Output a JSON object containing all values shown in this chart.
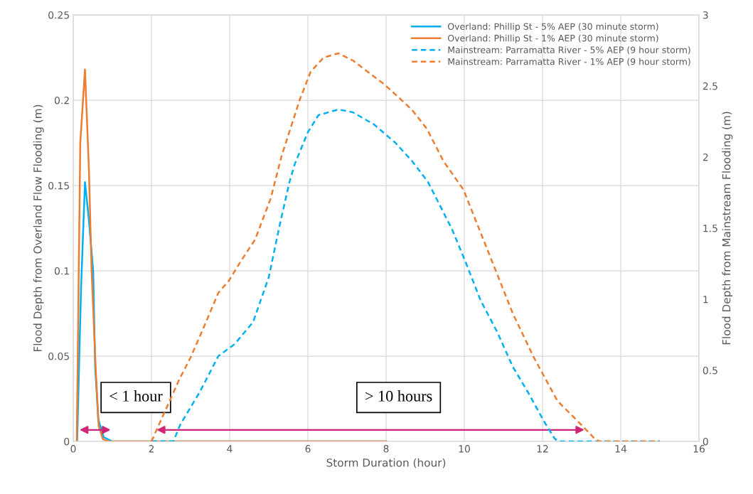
{
  "chart_data": {
    "type": "line",
    "xlabel": "Storm Duration (hour)",
    "ylabel": "Flood Depth from Overland Flow Flooding (m)",
    "y2label": "Flood Depth from Mainstream Flooding (m)",
    "xlim": [
      0,
      16
    ],
    "xticks": [
      0,
      2,
      4,
      6,
      8,
      10,
      12,
      14,
      16
    ],
    "ylim": [
      0,
      0.25
    ],
    "yticks": [
      0,
      0.05,
      0.1,
      0.15,
      0.2,
      0.25
    ],
    "y2lim": [
      0,
      3
    ],
    "y2ticks": [
      0,
      0.5,
      1,
      1.5,
      2,
      2.5,
      3
    ],
    "grid": true,
    "legend": "top right",
    "annotations": [
      "< 1 hour",
      "> 10 hours"
    ],
    "series": [
      {
        "name": "Overland: Phillip St - 5% AEP (30 minute storm)",
        "color": "#00b0f0",
        "line_style": "solid",
        "x": [
          0.1,
          0.2,
          0.3,
          0.4,
          0.51,
          0.56,
          0.64,
          0.78,
          1.0,
          8
        ],
        "values": [
          0,
          0.09,
          0.152,
          0.13,
          0.1,
          0.044,
          0.013,
          0.0025,
          0,
          0
        ]
      },
      {
        "name": "Overland: Phillip St - 1% AEP (30 minute storm)",
        "color": "#ed7d31",
        "line_style": "solid",
        "x": [
          0.09,
          0.18,
          0.3,
          0.4,
          0.47,
          0.58,
          0.65,
          0.76,
          0.9,
          8
        ],
        "values": [
          0,
          0.175,
          0.218,
          0.16,
          0.1,
          0.04,
          0.009,
          0.0013,
          0,
          0
        ]
      },
      {
        "name": "Mainstream: Parramatta River - 5% AEP (9 hour storm)",
        "color": "#00b0f0",
        "line_style": "dashed",
        "axis": "y2",
        "x": [
          2,
          2.56,
          2.74,
          3.22,
          3.71,
          4.13,
          4.6,
          5.0,
          5.27,
          5.53,
          5.67,
          6.0,
          6.27,
          6.78,
          7.15,
          7.69,
          8.24,
          8.67,
          9.07,
          9.69,
          10.02,
          10.42,
          10.84,
          11.24,
          11.64,
          12.04,
          12.31,
          12.4,
          15
        ],
        "values": [
          0,
          0,
          0.12,
          0.34,
          0.6,
          0.685,
          0.84,
          1.155,
          1.51,
          1.825,
          1.955,
          2.175,
          2.295,
          2.335,
          2.315,
          2.23,
          2.1,
          1.97,
          1.825,
          1.49,
          1.27,
          0.99,
          0.77,
          0.525,
          0.34,
          0.14,
          0.02,
          0,
          0
        ]
      },
      {
        "name": "Mainstream: Parramatta River - 1% AEP (9 hour storm)",
        "color": "#ed7d31",
        "line_style": "dashed",
        "axis": "y2",
        "x": [
          2,
          2.71,
          3.0,
          3.31,
          3.71,
          3.98,
          4.29,
          4.65,
          5.05,
          5.33,
          5.8,
          6.07,
          6.4,
          6.78,
          7.15,
          7.96,
          8.36,
          8.67,
          9.04,
          9.47,
          9.98,
          10.82,
          11.24,
          11.76,
          12.38,
          12.98,
          13.33,
          13.45,
          15
        ],
        "values": [
          0,
          0.435,
          0.59,
          0.785,
          1.045,
          1.13,
          1.27,
          1.42,
          1.71,
          2.01,
          2.41,
          2.6,
          2.7,
          2.73,
          2.68,
          2.51,
          2.41,
          2.33,
          2.2,
          1.97,
          1.77,
          1.19,
          0.9,
          0.6,
          0.285,
          0.12,
          0.02,
          0,
          0
        ]
      }
    ]
  }
}
